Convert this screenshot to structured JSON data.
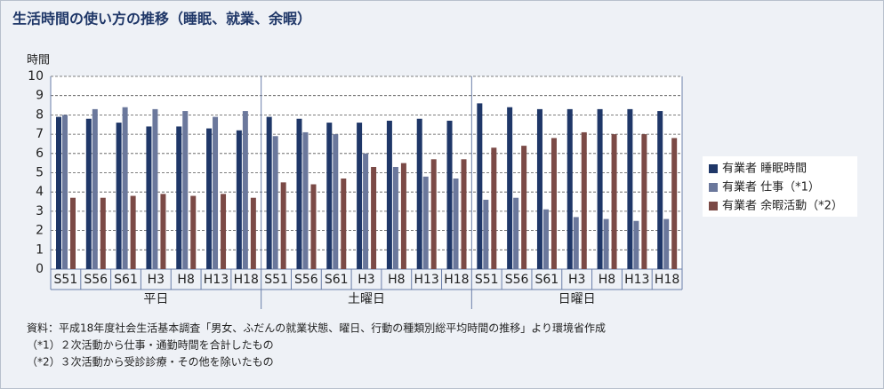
{
  "chart_data": {
    "type": "bar",
    "title": "生活時間の使い方の推移（睡眠、就業、余暇）",
    "y_label": "時間",
    "categories": [
      "S51",
      "S56",
      "S61",
      "H3",
      "H8",
      "H13",
      "H18",
      "S51",
      "S56",
      "S61",
      "H3",
      "H8",
      "H13",
      "H18",
      "S51",
      "S56",
      "S61",
      "H3",
      "H8",
      "H13",
      "H18"
    ],
    "groups": [
      "平日",
      "土曜日",
      "日曜日"
    ],
    "series": [
      {
        "name": "有業者 睡眠時間",
        "color": "#1f3768",
        "values": [
          7.9,
          7.8,
          7.6,
          7.4,
          7.4,
          7.3,
          7.2,
          7.9,
          7.8,
          7.6,
          7.6,
          7.7,
          7.8,
          7.7,
          8.6,
          8.4,
          8.3,
          8.3,
          8.3,
          8.3,
          8.2
        ]
      },
      {
        "name": "有業者 仕事（*1）",
        "color": "#6b789c",
        "values": [
          8.0,
          8.3,
          8.4,
          8.3,
          8.2,
          7.9,
          8.2,
          6.9,
          7.1,
          7.0,
          6.0,
          5.3,
          4.8,
          4.7,
          3.6,
          3.7,
          3.1,
          2.7,
          2.6,
          2.5,
          2.6
        ]
      },
      {
        "name": "有業者 余暇活動（*2）",
        "color": "#7b4a46",
        "values": [
          3.7,
          3.7,
          3.8,
          3.9,
          3.8,
          3.9,
          3.7,
          4.5,
          4.4,
          4.7,
          5.3,
          5.5,
          5.7,
          5.7,
          6.3,
          6.4,
          6.8,
          7.1,
          7.0,
          7.0,
          6.8
        ]
      }
    ],
    "ylim": [
      0,
      10
    ],
    "yticks": [
      0,
      1,
      2,
      3,
      4,
      5,
      6,
      7,
      8,
      9,
      10
    ],
    "grid": true,
    "notes": [
      "資料：平成18年度社会生活基本調査「男女、ふだんの就業状態、曜日、行動の種類別総平均時間の推移」より環境省作成",
      "（*1）２次活動から仕事・通勤時間を合計したもの",
      "（*2）３次活動から受診診療・その他を除いたもの"
    ]
  }
}
